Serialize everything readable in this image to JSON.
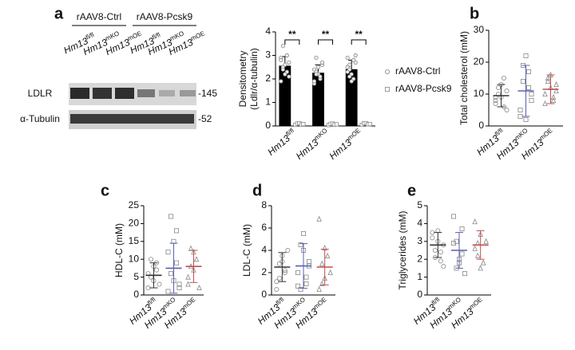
{
  "blot": {
    "groups": [
      "rAAV8-Ctrl",
      "rAAV8-Pcsk9"
    ],
    "lanes": [
      "Hm13fl/fl",
      "Hm13mKO",
      "Hm13mOE",
      "Hm13fl/fl",
      "Hm13mKO",
      "Hm13mOE"
    ],
    "rows": [
      {
        "name": "LDLR",
        "marker": "-145"
      },
      {
        "name": "α-Tubulin",
        "marker": "-52"
      }
    ]
  },
  "chart_data": [
    {
      "type": "bar",
      "panel": "a",
      "ylabel": [
        "Densitometry",
        "(Ldlr/α-tubulin)"
      ],
      "categories": [
        "Hm13fl/fl",
        "Hm13mKO",
        "Hm13mOE"
      ],
      "ylim": [
        0,
        4
      ],
      "yticks": [
        0,
        1,
        2,
        3,
        4
      ],
      "annotations": [
        "**",
        "**",
        "**"
      ],
      "series": [
        {
          "name": "rAAV8-Ctrl",
          "color": "#000000",
          "marker": "circle",
          "values": [
            2.55,
            2.25,
            2.4
          ],
          "errors": [
            0.4,
            0.35,
            0.4
          ],
          "points": [
            [
              2.9,
              3.4,
              2.6,
              2.3,
              2.1,
              2.8,
              2.5,
              2.2,
              3.0,
              2.7,
              1.9,
              2.4
            ],
            [
              2.4,
              2.9,
              2.2,
              2.0,
              2.6,
              1.8,
              2.3,
              2.5,
              2.1,
              2.7,
              1.9,
              2.2
            ],
            [
              2.9,
              2.6,
              2.2,
              2.0,
              2.7,
              2.5,
              2.4,
              1.9,
              2.8,
              3.0,
              2.3,
              2.1
            ]
          ]
        },
        {
          "name": "rAAV8-Pcsk9",
          "color": "#ffffff",
          "marker": "square",
          "values": [
            0.08,
            0.07,
            0.08
          ],
          "errors": [
            0.04,
            0.03,
            0.04
          ],
          "points": [
            [
              0.05,
              0.1,
              0.12,
              0.06,
              0.08
            ],
            [
              0.04,
              0.09,
              0.1,
              0.06,
              0.07
            ],
            [
              0.05,
              0.11,
              0.12,
              0.07,
              0.08
            ]
          ]
        }
      ]
    },
    {
      "type": "dot",
      "panel": "b",
      "ylabel": "Total cholesterol (mM)",
      "categories": [
        "Hm13fl/fl",
        "Hm13mKO",
        "Hm13mOE"
      ],
      "colors": [
        "#333333",
        "#5b5fb0",
        "#c0504d"
      ],
      "markers": [
        "circle",
        "square",
        "triangle"
      ],
      "ylim": [
        0,
        30
      ],
      "yticks": [
        0,
        10,
        20,
        30
      ],
      "values": [
        9.5,
        11,
        11.5
      ],
      "errors": [
        3.5,
        8,
        4.5
      ],
      "points": [
        [
          7,
          12,
          9,
          15,
          5,
          8,
          10,
          13,
          6,
          11,
          9
        ],
        [
          3,
          19,
          22,
          12,
          8,
          5,
          14,
          2,
          17,
          10
        ],
        [
          10,
          14,
          16,
          8,
          13,
          7,
          15,
          12,
          9,
          11
        ]
      ]
    },
    {
      "type": "dot",
      "panel": "c",
      "ylabel": "HDL-C (mM)",
      "categories": [
        "Hm13fl/fl",
        "Hm13mKO",
        "Hm13mOE"
      ],
      "colors": [
        "#333333",
        "#5b5fb0",
        "#c0504d"
      ],
      "markers": [
        "circle",
        "square",
        "triangle"
      ],
      "ylim": [
        0,
        25
      ],
      "yticks": [
        0,
        5,
        10,
        15,
        20,
        25
      ],
      "values": [
        5.5,
        7.5,
        8
      ],
      "errors": [
        3.5,
        7,
        4.5
      ],
      "points": [
        [
          2,
          5,
          8,
          9,
          3,
          6,
          10,
          4,
          7
        ],
        [
          1,
          22,
          15,
          9,
          3,
          12,
          6,
          4,
          18,
          2
        ],
        [
          3,
          8,
          12,
          10,
          2,
          5,
          13,
          7
        ]
      ]
    },
    {
      "type": "dot",
      "panel": "d",
      "ylabel": "LDL-C (mM)",
      "categories": [
        "Hm13fl/fl",
        "Hm13mKO",
        "Hm13mOE"
      ],
      "colors": [
        "#333333",
        "#5b5fb0",
        "#c0504d"
      ],
      "markers": [
        "circle",
        "square",
        "triangle"
      ],
      "ylim": [
        0,
        8
      ],
      "yticks": [
        0,
        2,
        4,
        6,
        8
      ],
      "values": [
        2.5,
        2.6,
        2.5
      ],
      "errors": [
        1.3,
        2,
        1.6
      ],
      "points": [
        [
          0.5,
          1.5,
          3.5,
          2,
          4,
          1.2,
          2.8,
          3,
          2.2
        ],
        [
          0.8,
          4.5,
          5.5,
          1,
          3,
          2,
          0.5,
          4,
          1.6,
          2.6
        ],
        [
          6.8,
          1,
          4.2,
          3.5,
          2,
          0.5,
          2.8,
          1.5
        ]
      ]
    },
    {
      "type": "dot",
      "panel": "e",
      "ylabel": "Triglycerides (mM)",
      "categories": [
        "Hm13fl/fl",
        "Hm13mKO",
        "Hm13mOE"
      ],
      "colors": [
        "#333333",
        "#5b5fb0",
        "#c0504d"
      ],
      "markers": [
        "circle",
        "square",
        "triangle"
      ],
      "ylim": [
        0,
        5
      ],
      "yticks": [
        0,
        1,
        2,
        3,
        4,
        5
      ],
      "values": [
        2.8,
        2.5,
        2.8
      ],
      "errors": [
        0.7,
        1,
        0.8
      ],
      "points": [
        [
          3.5,
          2.5,
          3,
          1.9,
          2.8,
          3.2,
          2.1,
          3.6,
          2.4,
          1.6
        ],
        [
          4.4,
          1.5,
          2,
          3.7,
          1.2,
          2.9,
          3,
          1.8,
          2.3
        ],
        [
          4.1,
          2.2,
          3.4,
          1.8,
          3,
          2.6,
          2.9,
          1.5
        ]
      ]
    }
  ]
}
